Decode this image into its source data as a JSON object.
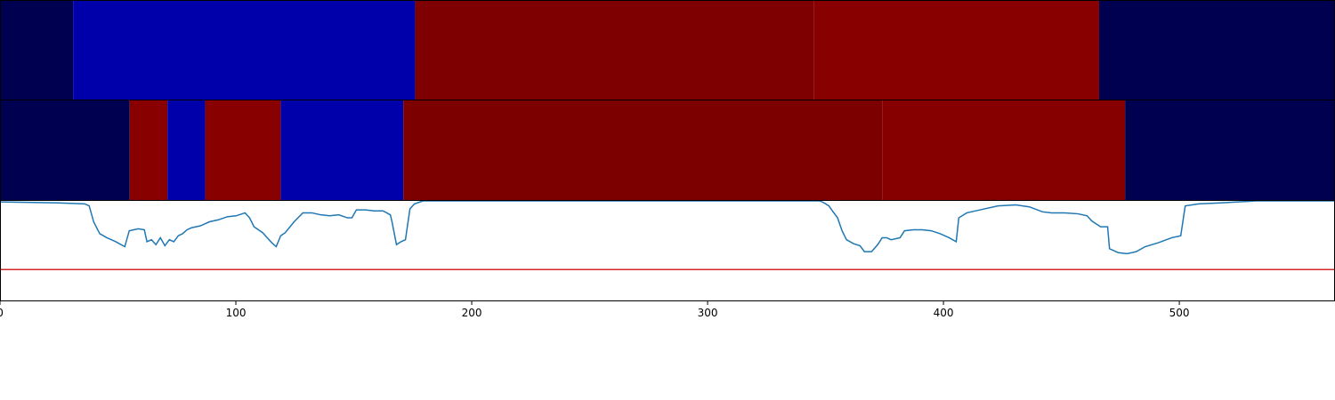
{
  "chart_data": [
    {
      "type": "segments",
      "xlim": [
        0,
        566
      ],
      "segments": [
        {
          "start": 0,
          "end": 31,
          "color": "#000050"
        },
        {
          "start": 31,
          "end": 176,
          "color": "#0000aa"
        },
        {
          "start": 176,
          "end": 345,
          "color": "#7f0000"
        },
        {
          "start": 345,
          "end": 466,
          "color": "#880000"
        },
        {
          "start": 466,
          "end": 566,
          "color": "#000050"
        }
      ]
    },
    {
      "type": "segments",
      "xlim": [
        0,
        566
      ],
      "segments": [
        {
          "start": 0,
          "end": 55,
          "color": "#000050"
        },
        {
          "start": 55,
          "end": 71,
          "color": "#880000"
        },
        {
          "start": 71,
          "end": 87,
          "color": "#0000aa"
        },
        {
          "start": 87,
          "end": 119,
          "color": "#880000"
        },
        {
          "start": 119,
          "end": 171,
          "color": "#0000aa"
        },
        {
          "start": 171,
          "end": 374,
          "color": "#7d0000"
        },
        {
          "start": 374,
          "end": 477,
          "color": "#870000"
        },
        {
          "start": 477,
          "end": 566,
          "color": "#000050"
        }
      ]
    },
    {
      "type": "line",
      "xlim": [
        0,
        566
      ],
      "ylim": [
        0,
        1
      ],
      "xticks": [
        0,
        100,
        200,
        300,
        400,
        500
      ],
      "hline": {
        "value": 0.31,
        "color": "#d62728"
      },
      "x": [
        0,
        24.6,
        35.9,
        37.8,
        39.7,
        42.3,
        45.3,
        49.1,
        52.9,
        54.8,
        58.6,
        61.2,
        62.3,
        64.2,
        66.1,
        68,
        69.9,
        71.8,
        73.7,
        75.6,
        77.4,
        79.3,
        81.2,
        85,
        88.8,
        92.6,
        96.3,
        100.1,
        103.9,
        105.8,
        107.7,
        111.4,
        113.3,
        115.2,
        117.1,
        119,
        120.9,
        124.7,
        128.4,
        132.2,
        136,
        139.8,
        143.6,
        147.3,
        149.2,
        151.1,
        154.9,
        158.7,
        162.4,
        165.5,
        166.2,
        168.1,
        170,
        171.9,
        173.8,
        175.7,
        179.4,
        188.9,
        347.6,
        349.4,
        351.4,
        353.2,
        355.1,
        357,
        358.9,
        361.9,
        364.6,
        366.5,
        369.5,
        372.1,
        374,
        375.9,
        377.8,
        381.6,
        383.5,
        387.2,
        391,
        394.8,
        398.6,
        402.4,
        405.4,
        406.5,
        409.9,
        415.6,
        423.1,
        430.7,
        436.4,
        442,
        445.8,
        451.5,
        457.1,
        460.9,
        462.8,
        466.6,
        469.6,
        470.4,
        474.1,
        477.9,
        481.7,
        485.5,
        491.1,
        496.8,
        500.6,
        502.5,
        508.1,
        517.6,
        532.7,
        566
      ],
      "series": [
        {
          "color": "#1f77b4",
          "values": [
            0.99,
            0.98,
            0.97,
            0.95,
            0.79,
            0.67,
            0.63,
            0.59,
            0.54,
            0.7,
            0.72,
            0.71,
            0.59,
            0.61,
            0.56,
            0.63,
            0.55,
            0.61,
            0.59,
            0.65,
            0.67,
            0.71,
            0.73,
            0.75,
            0.79,
            0.81,
            0.84,
            0.85,
            0.88,
            0.83,
            0.74,
            0.68,
            0.63,
            0.58,
            0.54,
            0.65,
            0.68,
            0.79,
            0.88,
            0.88,
            0.86,
            0.85,
            0.86,
            0.83,
            0.83,
            0.91,
            0.91,
            0.9,
            0.9,
            0.86,
            0.79,
            0.56,
            0.59,
            0.61,
            0.92,
            0.97,
            1.0,
            1.0,
            1.0,
            0.98,
            0.95,
            0.89,
            0.83,
            0.7,
            0.61,
            0.57,
            0.55,
            0.49,
            0.49,
            0.56,
            0.63,
            0.63,
            0.61,
            0.63,
            0.7,
            0.71,
            0.71,
            0.7,
            0.67,
            0.63,
            0.59,
            0.83,
            0.88,
            0.91,
            0.95,
            0.96,
            0.94,
            0.89,
            0.88,
            0.88,
            0.87,
            0.85,
            0.8,
            0.74,
            0.74,
            0.52,
            0.48,
            0.47,
            0.49,
            0.54,
            0.58,
            0.63,
            0.65,
            0.95,
            0.97,
            0.98,
            1.0,
            1.0
          ]
        }
      ]
    }
  ]
}
